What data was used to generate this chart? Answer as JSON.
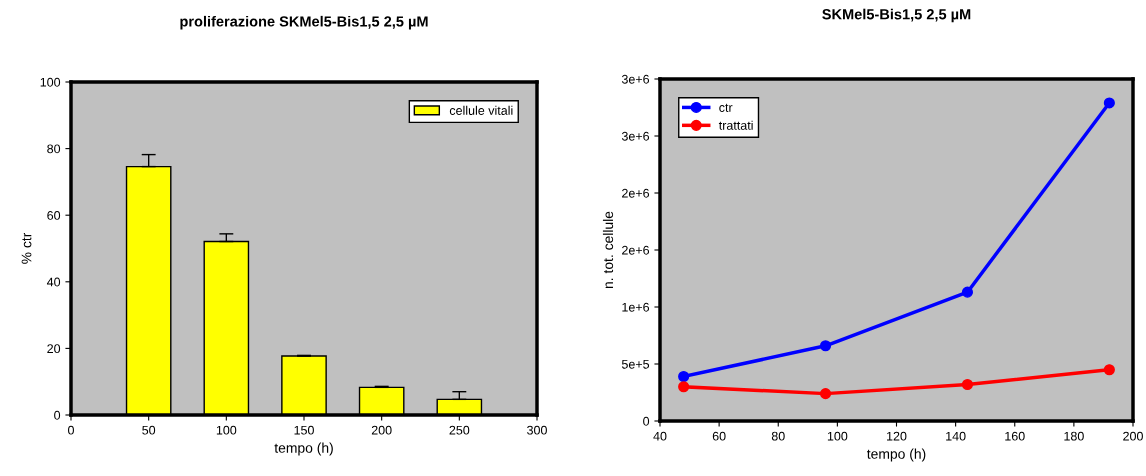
{
  "chart_data": [
    {
      "type": "bar",
      "title": "proliferazione SKMel5-Bis1,5 2,5 µM",
      "xlabel": "tempo (h)",
      "ylabel": "% ctr",
      "x": [
        50,
        100,
        150,
        200,
        250
      ],
      "series": [
        {
          "name": "cellule vitali",
          "color": "#ffff00",
          "values": [
            74.6,
            52.1,
            17.7,
            8.3,
            4.7
          ],
          "errors": [
            [
              74.6,
              78.2
            ],
            [
              52.1,
              54.4
            ],
            [
              17.7,
              17.9
            ],
            [
              8.3,
              8.6
            ],
            [
              4.7,
              7.0
            ]
          ]
        }
      ],
      "xlim": [
        0,
        300
      ],
      "xticks": [
        0,
        50,
        100,
        150,
        200,
        250,
        300
      ],
      "ylim": [
        0,
        100
      ],
      "yticks": [
        0,
        20,
        40,
        60,
        80,
        100
      ],
      "grid": false,
      "legend": "top right"
    },
    {
      "type": "line",
      "title": "SKMel5-Bis1,5 2,5 µM",
      "xlabel": "tempo (h)",
      "ylabel": "n. tot. cellule",
      "x": [
        48,
        96,
        144,
        192
      ],
      "series": [
        {
          "name": "ctr",
          "color": "#0000ff",
          "values": [
            390000,
            660000,
            1130000,
            2790000
          ]
        },
        {
          "name": "trattati",
          "color": "#ff0000",
          "values": [
            300000,
            240000,
            320000,
            450000
          ]
        }
      ],
      "xlim": [
        40,
        200
      ],
      "xticks": [
        40,
        60,
        80,
        100,
        120,
        140,
        160,
        180,
        200
      ],
      "ylim": [
        0,
        3000000
      ],
      "yticks": [
        0,
        {
          "value": 500000,
          "label": "5e+5"
        },
        {
          "value": 1000000,
          "label": "1e+6"
        },
        {
          "value": 1500000,
          "label": "2e+6"
        },
        {
          "value": 2000000,
          "label": "2e+6"
        },
        {
          "value": 2500000,
          "label": "3e+6"
        },
        {
          "value": 3000000,
          "label": "3e+6"
        }
      ],
      "grid": false,
      "legend": "top left",
      "marker": "circle",
      "line_style": "solid"
    }
  ]
}
